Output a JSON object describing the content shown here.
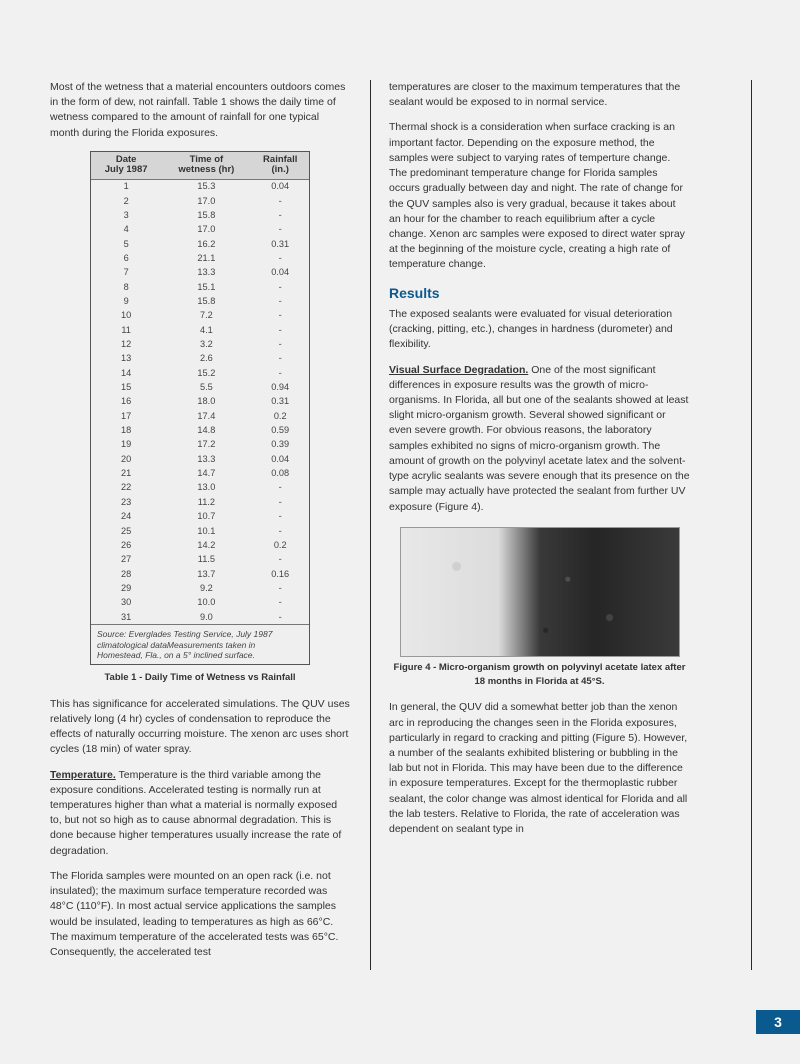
{
  "page_number": "3",
  "left": {
    "p1": "Most of the wetness that a material encounters outdoors comes in the form of dew, not rainfall. Table 1 shows the daily time of wetness compared to the amount of rainfall for one typical month during the Florida exposures.",
    "table": {
      "headers": {
        "c1a": "Date",
        "c1b": "July 1987",
        "c2a": "Time of",
        "c2b": "wetness (hr)",
        "c3a": "Rainfall",
        "c3b": "(in.)"
      },
      "rows": [
        [
          "1",
          "15.3",
          "0.04"
        ],
        [
          "2",
          "17.0",
          "-"
        ],
        [
          "3",
          "15.8",
          "-"
        ],
        [
          "4",
          "17.0",
          "-"
        ],
        [
          "5",
          "16.2",
          "0.31"
        ],
        [
          "6",
          "21.1",
          "-"
        ],
        [
          "7",
          "13.3",
          "0.04"
        ],
        [
          "8",
          "15.1",
          "-"
        ],
        [
          "9",
          "15.8",
          "-"
        ],
        [
          "10",
          "7.2",
          "-"
        ],
        [
          "11",
          "4.1",
          "-"
        ],
        [
          "12",
          "3.2",
          "-"
        ],
        [
          "13",
          "2.6",
          "-"
        ],
        [
          "14",
          "15.2",
          "-"
        ],
        [
          "15",
          "5.5",
          "0.94"
        ],
        [
          "16",
          "18.0",
          "0.31"
        ],
        [
          "17",
          "17.4",
          "0.2"
        ],
        [
          "18",
          "14.8",
          "0.59"
        ],
        [
          "19",
          "17.2",
          "0.39"
        ],
        [
          "20",
          "13.3",
          "0.04"
        ],
        [
          "21",
          "14.7",
          "0.08"
        ],
        [
          "22",
          "13.0",
          "-"
        ],
        [
          "23",
          "11.2",
          "-"
        ],
        [
          "24",
          "10.7",
          "-"
        ],
        [
          "25",
          "10.1",
          "-"
        ],
        [
          "26",
          "14.2",
          "0.2"
        ],
        [
          "27",
          "11.5",
          "-"
        ],
        [
          "28",
          "13.7",
          "0.16"
        ],
        [
          "29",
          "9.2",
          "-"
        ],
        [
          "30",
          "10.0",
          "-"
        ],
        [
          "31",
          "9.0",
          "-"
        ]
      ],
      "source": "Source: Everglades Testing Service, July 1987 climatological dataMeasurements taken in Homestead, Fla., on a 5° inclined surface.",
      "caption": "Table 1 - Daily Time of Wetness vs Rainfall"
    },
    "p2": "This has significance for accelerated simulations. The QUV uses relatively long (4 hr) cycles of condensation to reproduce the effects of naturally occurring moisture. The xenon arc uses short cycles (18 min) of water spray.",
    "p3_label": "Temperature.",
    "p3": " Temperature is the third variable among the exposure conditions. Accelerated testing is normally run at temperatures higher than what a material is normally exposed to, but not so high as to cause abnormal degradation. This is done because higher temperatures usually increase the rate of degradation.",
    "p4": "The Florida samples were mounted on an open rack (i.e. not insulated); the maximum surface temperature recorded was 48°C (110°F). In most actual service applications the samples would be insulated, leading to temperatures as high as 66°C. The maximum temperature of the accelerated tests was 65°C. Consequently, the accelerated test"
  },
  "right": {
    "p1": "temperatures are closer to the maximum temperatures that the sealant would be exposed to in normal service.",
    "p2": "Thermal shock is a consideration when surface cracking is an important factor. Depending on the exposure method, the samples were subject to varying rates of temperture change. The predominant temperature change for Florida samples occurs gradually between day and night. The rate of change for the QUV samples also is very gradual, because it takes about an hour for the chamber to reach equilibrium after a cycle change. Xenon arc samples were exposed to direct water spray at the beginning of the moisture cycle, creating a high rate of temperature change.",
    "heading": "Results",
    "p3": "The exposed sealants were evaluated for visual deterioration (cracking, pitting, etc.), changes in hardness (durometer) and flexibility.",
    "p4_label": "Visual Surface Degradation.",
    "p4": " One of the most significant differences in exposure results was the growth of micro-organisms. In Florida, all but one of the sealants showed at least slight micro-organism growth. Several showed significant or even severe growth. For obvious reasons, the laboratory samples exhibited no signs of micro-organism growth. The amount of growth on the polyvinyl acetate latex and the solvent-type acrylic sealants was severe enough that its presence on the sample may actually have protected the sealant from further UV exposure (Figure 4).",
    "fig_caption": "Figure 4 - Micro-organism growth on polyvinyl acetate latex after 18 months in Florida at 45°S.",
    "p5": "In general, the QUV did a somewhat better job than the xenon arc in reproducing the changes seen in the Florida exposures, particularly in regard to cracking and pitting (Figure 5). However, a number of the sealants exhibited blistering or bubbling in the lab but not in Florida. This may have been due to the difference in exposure temperatures. Except for the thermoplastic rubber sealant, the color change was almost identical for Florida and all the lab testers. Relative to Florida, the rate of acceleration was dependent on sealant type in"
  }
}
